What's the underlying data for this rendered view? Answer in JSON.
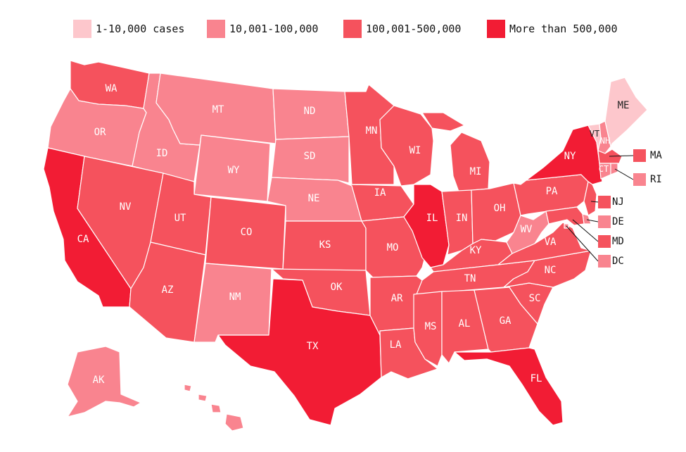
{
  "colors": {
    "c1": "#fdc7cc",
    "c2": "#f9848f",
    "c3": "#f5525d",
    "c4": "#f21c34"
  },
  "legend": [
    {
      "label": "1-10,000 cases",
      "color_key": "c1"
    },
    {
      "label": "10,001-100,000",
      "color_key": "c2"
    },
    {
      "label": "100,001-500,000",
      "color_key": "c3"
    },
    {
      "label": "More than 500,000",
      "color_key": "c4"
    }
  ],
  "states": {
    "WA": {
      "label": "WA",
      "color_key": "c3"
    },
    "OR": {
      "label": "OR",
      "color_key": "c2"
    },
    "CA": {
      "label": "CA",
      "color_key": "c4"
    },
    "ID": {
      "label": "ID",
      "color_key": "c2"
    },
    "NV": {
      "label": "NV",
      "color_key": "c3"
    },
    "MT": {
      "label": "MT",
      "color_key": "c2"
    },
    "WY": {
      "label": "WY",
      "color_key": "c2"
    },
    "UT": {
      "label": "UT",
      "color_key": "c3"
    },
    "AZ": {
      "label": "AZ",
      "color_key": "c3"
    },
    "CO": {
      "label": "CO",
      "color_key": "c3"
    },
    "NM": {
      "label": "NM",
      "color_key": "c2"
    },
    "ND": {
      "label": "ND",
      "color_key": "c2"
    },
    "SD": {
      "label": "SD",
      "color_key": "c2"
    },
    "NE": {
      "label": "NE",
      "color_key": "c2"
    },
    "KS": {
      "label": "KS",
      "color_key": "c3"
    },
    "OK": {
      "label": "OK",
      "color_key": "c3"
    },
    "TX": {
      "label": "TX",
      "color_key": "c4"
    },
    "MN": {
      "label": "MN",
      "color_key": "c3"
    },
    "IA": {
      "label": "IA",
      "color_key": "c3"
    },
    "MO": {
      "label": "MO",
      "color_key": "c3"
    },
    "AR": {
      "label": "AR",
      "color_key": "c3"
    },
    "LA": {
      "label": "LA",
      "color_key": "c3"
    },
    "WI": {
      "label": "WI",
      "color_key": "c3"
    },
    "IL": {
      "label": "IL",
      "color_key": "c4"
    },
    "MI": {
      "label": "MI",
      "color_key": "c3"
    },
    "IN": {
      "label": "IN",
      "color_key": "c3"
    },
    "OH": {
      "label": "OH",
      "color_key": "c3"
    },
    "KY": {
      "label": "KY",
      "color_key": "c3"
    },
    "TN": {
      "label": "TN",
      "color_key": "c3"
    },
    "MS": {
      "label": "MS",
      "color_key": "c3"
    },
    "AL": {
      "label": "AL",
      "color_key": "c3"
    },
    "GA": {
      "label": "GA",
      "color_key": "c3"
    },
    "FL": {
      "label": "FL",
      "color_key": "c4"
    },
    "SC": {
      "label": "SC",
      "color_key": "c3"
    },
    "NC": {
      "label": "NC",
      "color_key": "c3"
    },
    "VA": {
      "label": "VA",
      "color_key": "c3"
    },
    "WV": {
      "label": "WV",
      "color_key": "c2"
    },
    "PA": {
      "label": "PA",
      "color_key": "c3"
    },
    "NY": {
      "label": "NY",
      "color_key": "c4"
    },
    "VT": {
      "label": "VT",
      "color_key": "c1"
    },
    "NH": {
      "label": "NH",
      "color_key": "c2"
    },
    "ME": {
      "label": "ME",
      "color_key": "c1"
    },
    "CT": {
      "label": "CT",
      "color_key": "c2"
    },
    "MA": {
      "label": "MA",
      "color_key": "c3"
    },
    "RI": {
      "label": "RI",
      "color_key": "c2"
    },
    "NJ": {
      "label": "NJ",
      "color_key": "c3"
    },
    "DE": {
      "label": "DE",
      "color_key": "c2"
    },
    "MD": {
      "label": "MD",
      "color_key": "c3"
    },
    "DC": {
      "label": "DC",
      "color_key": "c2"
    },
    "AK": {
      "label": "AK",
      "color_key": "c2"
    },
    "HI": {
      "label": "",
      "color_key": "c2"
    }
  }
}
